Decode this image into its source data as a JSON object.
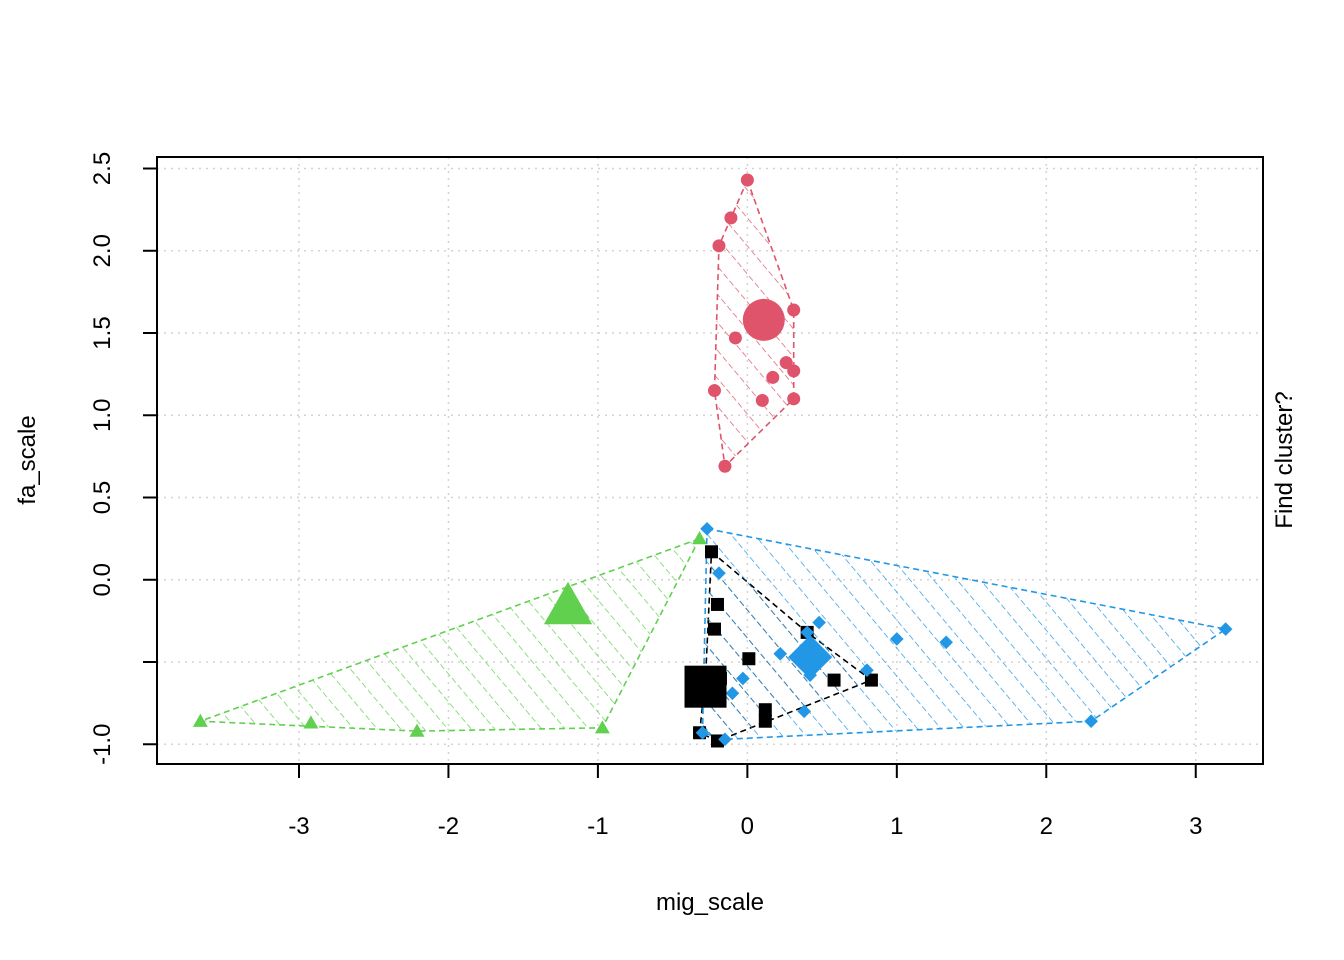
{
  "chart_data": {
    "type": "scatter",
    "xlabel": "mig_scale",
    "ylabel": "fa_scale",
    "right_label": "Find cluster?",
    "xlim": [
      -3.95,
      3.45
    ],
    "ylim": [
      -1.12,
      2.57
    ],
    "x_ticks": [
      -3,
      -2,
      -1,
      0,
      1,
      2,
      3
    ],
    "x_tick_labels": [
      "-3",
      "-2",
      "-1",
      "0",
      "1",
      "2",
      "3"
    ],
    "y_ticks": [
      -1.0,
      -0.5,
      0.0,
      0.5,
      1.0,
      1.5,
      2.0,
      2.5
    ],
    "y_tick_labels": [
      "-1.0",
      "",
      "0.0",
      "0.5",
      "1.0",
      "1.5",
      "2.0",
      "2.5"
    ],
    "grid": true,
    "series": [
      {
        "marker": "square",
        "color": "#000000",
        "centroid": [
          -0.28,
          -0.65
        ],
        "points": [
          [
            -0.24,
            0.17
          ],
          [
            -0.2,
            -0.15
          ],
          [
            -0.22,
            -0.3
          ],
          [
            -0.28,
            -0.6
          ],
          [
            0.4,
            -0.32
          ],
          [
            0.01,
            -0.48
          ],
          [
            0.58,
            -0.61
          ],
          [
            0.83,
            -0.61
          ],
          [
            0.12,
            -0.79
          ],
          [
            0.12,
            -0.86
          ],
          [
            -0.32,
            -0.93
          ],
          [
            -0.2,
            -0.98
          ],
          [
            -0.25,
            -0.72
          ],
          [
            -0.18,
            -0.6
          ]
        ],
        "hull": [
          [
            -0.24,
            0.17
          ],
          [
            0.4,
            -0.32
          ],
          [
            0.83,
            -0.61
          ],
          [
            -0.2,
            -0.98
          ],
          [
            -0.32,
            -0.93
          ],
          [
            -0.28,
            -0.6
          ]
        ]
      },
      {
        "marker": "circle",
        "color": "#DF536B",
        "centroid": [
          0.11,
          1.58
        ],
        "points": [
          [
            0.0,
            2.43
          ],
          [
            -0.11,
            2.2
          ],
          [
            -0.19,
            2.03
          ],
          [
            0.31,
            1.64
          ],
          [
            -0.08,
            1.47
          ],
          [
            0.26,
            1.32
          ],
          [
            0.31,
            1.27
          ],
          [
            0.17,
            1.23
          ],
          [
            -0.22,
            1.15
          ],
          [
            0.1,
            1.09
          ],
          [
            0.31,
            1.1
          ],
          [
            -0.15,
            0.69
          ]
        ],
        "hull": [
          [
            0.0,
            2.43
          ],
          [
            0.31,
            1.64
          ],
          [
            0.31,
            1.1
          ],
          [
            -0.15,
            0.69
          ],
          [
            -0.22,
            1.15
          ],
          [
            -0.19,
            2.03
          ]
        ]
      },
      {
        "marker": "triangle",
        "color": "#61D04F",
        "centroid": [
          -1.2,
          -0.16
        ],
        "points": [
          [
            -0.32,
            0.25
          ],
          [
            -3.66,
            -0.86
          ],
          [
            -2.92,
            -0.87
          ],
          [
            -2.21,
            -0.92
          ],
          [
            -0.97,
            -0.9
          ]
        ],
        "hull": [
          [
            -0.32,
            0.25
          ],
          [
            -0.97,
            -0.9
          ],
          [
            -2.21,
            -0.92
          ],
          [
            -3.66,
            -0.86
          ]
        ]
      },
      {
        "marker": "diamond",
        "color": "#2297E6",
        "centroid": [
          0.42,
          -0.47
        ],
        "points": [
          [
            -0.27,
            0.31
          ],
          [
            -0.19,
            0.04
          ],
          [
            0.48,
            -0.26
          ],
          [
            0.4,
            -0.32
          ],
          [
            1.0,
            -0.36
          ],
          [
            1.33,
            -0.38
          ],
          [
            0.22,
            -0.45
          ],
          [
            0.8,
            -0.55
          ],
          [
            -0.03,
            -0.6
          ],
          [
            -0.1,
            -0.69
          ],
          [
            0.38,
            -0.8
          ],
          [
            0.42,
            -0.58
          ],
          [
            2.3,
            -0.86
          ],
          [
            3.2,
            -0.3
          ],
          [
            -0.3,
            -0.93
          ],
          [
            -0.15,
            -0.97
          ]
        ],
        "hull": [
          [
            -0.27,
            0.31
          ],
          [
            3.2,
            -0.3
          ],
          [
            2.3,
            -0.86
          ],
          [
            -0.15,
            -0.97
          ],
          [
            -0.3,
            -0.93
          ]
        ]
      }
    ]
  }
}
